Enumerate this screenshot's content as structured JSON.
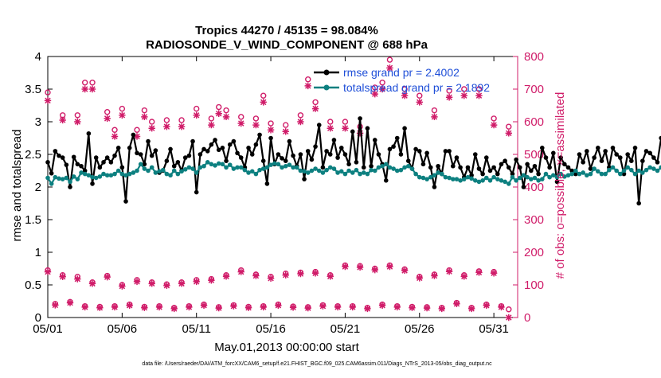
{
  "chart_data": {
    "type": "line",
    "title_line1": "Tropics 44270 / 45135 = 98.084%",
    "title_line2": "RADIOSONDE_V_WIND_COMPONENT @ 688 hPa",
    "xlabel": "May.01,2013 00:00:00 start",
    "ylabel_left": "rmse and totalspread",
    "ylabel_right": "# of obs: o=possible; ×=assimilated",
    "footer": "data file: /Users/raeder/DAI/ATM_forcXX/CAM6_setup/f.e21.FHIST_BGC.f09_025.CAM6assim.011/Diags_NTrS_2013-05/obs_diag_output.nc",
    "xlim": [
      0,
      31.6
    ],
    "ylim_left": [
      0,
      4
    ],
    "ylim_right": [
      0,
      800
    ],
    "x_ticks": [
      0,
      5,
      10,
      15,
      20,
      25,
      30
    ],
    "x_tick_labels": [
      "05/01",
      "05/06",
      "05/11",
      "05/16",
      "05/21",
      "05/26",
      "05/31"
    ],
    "y_left_ticks": [
      0,
      0.5,
      1,
      1.5,
      2,
      2.5,
      3,
      3.5,
      4
    ],
    "y_left_tick_labels": [
      "0",
      "0.5",
      "1",
      "1.5",
      "2",
      "2.5",
      "3",
      "3.5",
      "4"
    ],
    "y_right_ticks": [
      0,
      100,
      200,
      300,
      400,
      500,
      600,
      700,
      800
    ],
    "y_right_tick_labels": [
      "0",
      "100",
      "200",
      "300",
      "400",
      "500",
      "600",
      "700",
      "800"
    ],
    "series": [
      {
        "name": "rmse grand pr = 2.4002",
        "axis": "left",
        "color": "#000000",
        "x_start": 0,
        "x_step": 0.25,
        "values": [
          2.38,
          2.21,
          2.55,
          2.48,
          2.45,
          2.34,
          2.0,
          2.46,
          2.35,
          2.32,
          2.25,
          2.82,
          2.05,
          2.45,
          2.3,
          2.38,
          2.45,
          2.38,
          2.48,
          2.6,
          2.3,
          1.78,
          2.6,
          2.8,
          2.52,
          2.5,
          2.35,
          2.7,
          2.48,
          2.56,
          2.22,
          2.25,
          2.4,
          2.58,
          2.32,
          2.38,
          2.25,
          2.45,
          2.48,
          2.7,
          1.92,
          2.5,
          2.58,
          2.55,
          2.65,
          2.72,
          2.57,
          2.6,
          2.4,
          2.65,
          2.7,
          2.52,
          2.45,
          2.3,
          2.6,
          2.5,
          2.65,
          2.8,
          2.4,
          2.05,
          2.75,
          2.35,
          2.5,
          2.44,
          2.4,
          2.7,
          2.48,
          2.32,
          2.5,
          2.12,
          2.55,
          2.42,
          2.62,
          2.95,
          2.3,
          2.55,
          2.5,
          2.72,
          2.45,
          2.6,
          2.5,
          2.35,
          2.85,
          2.38,
          3.05,
          2.3,
          2.9,
          2.32,
          2.72,
          2.5,
          2.35,
          2.1,
          2.58,
          2.62,
          2.75,
          2.5,
          2.9,
          2.4,
          2.28,
          2.58,
          2.55,
          2.35,
          2.52,
          2.3,
          2.0,
          2.32,
          2.2,
          2.55,
          2.55,
          2.32,
          2.45,
          2.3,
          2.15,
          2.3,
          2.18,
          2.5,
          2.28,
          2.2,
          2.45,
          2.25,
          2.3,
          2.2,
          2.35,
          2.4,
          2.3,
          2.2,
          2.42,
          2.3,
          2.0,
          2.35,
          2.25,
          2.32,
          2.2,
          2.6,
          2.45,
          2.3,
          2.52,
          2.08,
          2.45,
          2.35,
          2.3,
          2.25,
          2.2,
          2.5,
          2.38,
          2.55,
          2.28,
          2.45,
          2.6,
          2.4,
          2.55,
          2.3,
          2.6,
          2.5,
          2.45,
          2.2,
          2.5,
          2.4,
          2.6,
          1.75,
          2.4,
          2.55,
          2.52,
          2.45,
          2.38,
          2.75,
          2.8,
          2.5,
          2.48,
          2.48,
          2.2,
          2.2
        ]
      },
      {
        "name": "totalspread grand pr = 2.1892",
        "axis": "left",
        "color": "#0d8080",
        "x_start": 0,
        "x_step": 0.25,
        "values": [
          2.14,
          2.05,
          2.15,
          2.13,
          2.12,
          2.14,
          2.08,
          2.16,
          2.12,
          2.22,
          2.2,
          2.18,
          2.15,
          2.14,
          2.16,
          2.2,
          2.18,
          2.18,
          2.2,
          2.25,
          2.2,
          2.18,
          2.2,
          2.22,
          2.25,
          2.35,
          2.28,
          2.25,
          2.3,
          2.22,
          2.24,
          2.26,
          2.2,
          2.18,
          2.25,
          2.2,
          2.24,
          2.27,
          2.3,
          2.28,
          2.22,
          2.3,
          2.32,
          2.38,
          2.35,
          2.33,
          2.36,
          2.35,
          2.3,
          2.34,
          2.28,
          2.3,
          2.3,
          2.26,
          2.22,
          2.24,
          2.2,
          2.26,
          2.28,
          2.3,
          2.34,
          2.36,
          2.35,
          2.3,
          2.32,
          2.34,
          2.3,
          2.3,
          2.25,
          2.24,
          2.22,
          2.25,
          2.28,
          2.25,
          2.22,
          2.26,
          2.3,
          2.28,
          2.22,
          2.24,
          2.2,
          2.25,
          2.22,
          2.26,
          2.2,
          2.22,
          2.2,
          2.26,
          2.25,
          2.3,
          2.32,
          2.35,
          2.3,
          2.28,
          2.25,
          2.26,
          2.3,
          2.32,
          2.28,
          2.2,
          2.15,
          2.14,
          2.12,
          2.15,
          2.18,
          2.22,
          2.2,
          2.15,
          2.14,
          2.12,
          2.12,
          2.1,
          2.12,
          2.15,
          2.13,
          2.1,
          2.08,
          2.1,
          2.14,
          2.1,
          2.15,
          2.12,
          2.1,
          2.08,
          2.05,
          2.15,
          2.1,
          2.14,
          2.18,
          2.15,
          2.12,
          2.14,
          2.1,
          2.12,
          2.2,
          2.15,
          2.18,
          2.15,
          2.2,
          2.16,
          2.18,
          2.2,
          2.25,
          2.2,
          2.22,
          2.18,
          2.2,
          2.28,
          2.24,
          2.2,
          2.2,
          2.26,
          2.3,
          2.25,
          2.2,
          2.25,
          2.3,
          2.26,
          2.2,
          2.25,
          2.22,
          2.26,
          2.3,
          2.28,
          2.25,
          2.3,
          2.38,
          2.32,
          2.28,
          2.25,
          2.2,
          2.15
        ]
      },
      {
        "name": "obs possible (high group)",
        "axis": "right",
        "color": "#d01c69",
        "x": [
          0,
          1,
          2,
          2.5,
          3,
          4,
          4.5,
          5,
          6,
          6.5,
          7,
          8,
          9,
          10,
          11,
          11.5,
          12,
          13,
          14,
          14.5,
          15,
          16,
          17,
          17.5,
          18,
          19,
          20,
          21,
          22,
          22.5,
          23,
          24,
          25,
          26,
          27,
          28,
          29,
          30,
          31
        ],
        "values": [
          690,
          620,
          620,
          720,
          720,
          630,
          575,
          640,
          575,
          635,
          600,
          605,
          605,
          640,
          610,
          645,
          635,
          615,
          610,
          680,
          595,
          590,
          620,
          730,
          660,
          600,
          600,
          585,
          705,
          720,
          790,
          700,
          680,
          635,
          695,
          700,
          700,
          610,
          585
        ]
      },
      {
        "name": "obs assimilated (high group)",
        "axis": "right",
        "color": "#d01c69",
        "x": [
          0,
          1,
          2,
          2.5,
          3,
          4,
          4.5,
          5,
          6,
          6.5,
          7,
          8,
          9,
          10,
          11,
          11.5,
          12,
          13,
          14,
          14.5,
          15,
          16,
          17,
          17.5,
          18,
          19,
          20,
          21,
          22,
          22.5,
          23,
          24,
          25,
          26,
          27,
          28,
          29,
          30,
          31
        ],
        "values": [
          665,
          605,
          600,
          700,
          700,
          610,
          555,
          620,
          555,
          615,
          580,
          585,
          585,
          620,
          590,
          625,
          615,
          595,
          590,
          660,
          575,
          570,
          600,
          710,
          640,
          580,
          580,
          565,
          685,
          700,
          765,
          680,
          660,
          615,
          675,
          680,
          680,
          590,
          565
        ]
      },
      {
        "name": "obs possible (low group)",
        "axis": "right",
        "color": "#d01c69",
        "x": [
          0,
          0.5,
          1,
          1.5,
          2,
          2.5,
          3,
          3.5,
          4,
          4.5,
          5,
          5.5,
          6,
          6.5,
          7,
          7.5,
          8,
          8.5,
          9,
          9.5,
          10,
          10.5,
          11,
          11.5,
          12,
          12.5,
          13,
          13.5,
          14,
          14.5,
          15,
          15.5,
          16,
          16.5,
          17,
          17.5,
          18,
          18.5,
          19,
          19.5,
          20,
          20.5,
          21,
          21.5,
          22,
          22.5,
          23,
          23.5,
          24,
          24.5,
          25,
          25.5,
          26,
          26.5,
          27,
          27.5,
          28,
          28.5,
          29,
          29.5,
          30,
          30.5,
          31
        ],
        "values": [
          145,
          42,
          130,
          48,
          125,
          35,
          108,
          33,
          128,
          35,
          100,
          40,
          115,
          33,
          108,
          35,
          102,
          30,
          108,
          35,
          115,
          40,
          118,
          32,
          130,
          38,
          145,
          33,
          132,
          35,
          125,
          40,
          135,
          34,
          138,
          32,
          140,
          38,
          130,
          35,
          160,
          35,
          158,
          30,
          150,
          40,
          160,
          35,
          148,
          33,
          125,
          32,
          132,
          30,
          145,
          45,
          130,
          30,
          142,
          40,
          140,
          35,
          25
        ]
      },
      {
        "name": "obs assimilated (low group)",
        "axis": "right",
        "color": "#d01c69",
        "x": [
          0,
          0.5,
          1,
          1.5,
          2,
          2.5,
          3,
          3.5,
          4,
          4.5,
          5,
          5.5,
          6,
          6.5,
          7,
          7.5,
          8,
          8.5,
          9,
          9.5,
          10,
          10.5,
          11,
          11.5,
          12,
          12.5,
          13,
          13.5,
          14,
          14.5,
          15,
          15.5,
          16,
          16.5,
          17,
          17.5,
          18,
          18.5,
          19,
          19.5,
          20,
          20.5,
          21,
          21.5,
          22,
          22.5,
          23,
          23.5,
          24,
          24.5,
          25,
          25.5,
          26,
          26.5,
          27,
          27.5,
          28,
          28.5,
          29,
          29.5,
          30,
          30.5,
          31
        ],
        "values": [
          140,
          38,
          125,
          45,
          118,
          32,
          104,
          30,
          124,
          32,
          96,
          37,
          110,
          30,
          104,
          32,
          98,
          27,
          104,
          32,
          110,
          37,
          114,
          29,
          126,
          35,
          140,
          30,
          128,
          32,
          120,
          37,
          130,
          31,
          134,
          29,
          136,
          35,
          126,
          32,
          156,
          32,
          154,
          27,
          146,
          37,
          156,
          32,
          144,
          30,
          121,
          29,
          128,
          27,
          141,
          42,
          126,
          27,
          138,
          37,
          136,
          32,
          0
        ]
      }
    ],
    "legend": {
      "position": "top-right",
      "entries": [
        "rmse grand pr = 2.4002",
        "totalspread grand pr = 2.1892"
      ],
      "text_color": "#1f4fd8"
    }
  }
}
